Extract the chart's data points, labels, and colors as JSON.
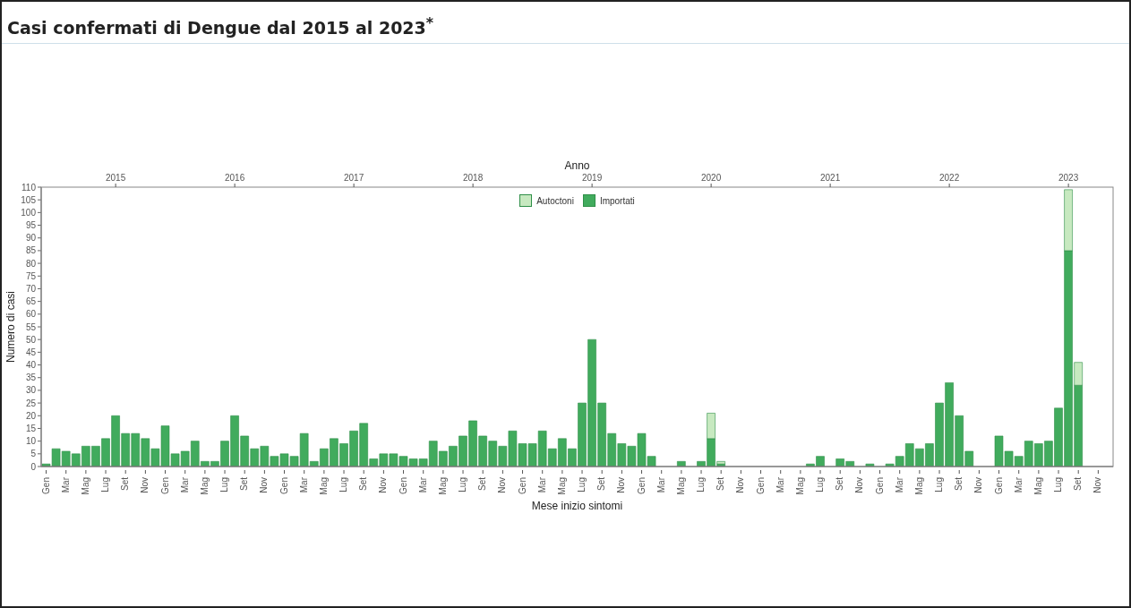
{
  "chart_data": {
    "type": "bar",
    "title": "Casi confermati di Dengue dal 2015 al 2023$^{*}$",
    "xlabel": "Mese inizio sintomi",
    "ylabel": "Numero di casi",
    "x2label": "Anno",
    "categories": [
      "Gen",
      null,
      "Mar",
      null,
      "Mag",
      null,
      "Lug",
      null,
      "Set",
      null,
      "Nov",
      null,
      "Gen",
      null,
      "Mar",
      null,
      "Mag",
      null,
      "Lug",
      null,
      "Set",
      null,
      "Nov",
      null,
      "Gen",
      null,
      "Mar",
      null,
      "Mag",
      null,
      "Lug",
      null,
      "Set",
      null,
      "Nov",
      null,
      "Gen",
      null,
      "Mar",
      null,
      "Mag",
      null,
      "Lug",
      null,
      "Set",
      null,
      "Nov",
      null,
      "Gen",
      null,
      "Mar",
      null,
      "Mag",
      null,
      "Lug",
      null,
      "Set",
      null,
      "Nov",
      null,
      "Gen",
      null,
      "Mar",
      null,
      "Mag",
      null,
      "Lug",
      null,
      "Set",
      null,
      "Nov",
      null,
      "Gen",
      null,
      "Mar",
      null,
      "Mag",
      null,
      "Lug",
      null,
      "Set",
      null,
      "Nov",
      null,
      "Gen",
      null,
      "Mar",
      null,
      "Mag",
      null,
      "Lug",
      null,
      "Set",
      null,
      "Nov",
      null,
      "Gen",
      null,
      "Mar",
      null,
      "Mag",
      null,
      "Lug",
      null,
      "Set",
      null,
      "Nov",
      null
    ],
    "stacked": true,
    "series": [
      {
        "name": "Importati",
        "color": "#41ab5d",
        "values": [
          1,
          7,
          6,
          5,
          8,
          8,
          11,
          20,
          13,
          13,
          11,
          7,
          16,
          5,
          6,
          10,
          2,
          2,
          10,
          20,
          12,
          7,
          8,
          4,
          5,
          4,
          13,
          2,
          7,
          11,
          9,
          14,
          17,
          3,
          5,
          5,
          4,
          3,
          3,
          10,
          6,
          8,
          12,
          18,
          12,
          10,
          8,
          14,
          9,
          9,
          14,
          7,
          11,
          7,
          25,
          50,
          25,
          13,
          9,
          8,
          13,
          4,
          0,
          0,
          2,
          0,
          2,
          11,
          1,
          0,
          0,
          0,
          0,
          0,
          0,
          0,
          0,
          1,
          4,
          0,
          3,
          2,
          0,
          1,
          0,
          1,
          4,
          9,
          7,
          9,
          25,
          33,
          20,
          6,
          0,
          0,
          12,
          6,
          4,
          10,
          9,
          10,
          23,
          85,
          32,
          0,
          0,
          0
        ]
      },
      {
        "name": "Autoctoni",
        "color": "#c7e9c0",
        "values": [
          0,
          0,
          0,
          0,
          0,
          0,
          0,
          0,
          0,
          0,
          0,
          0,
          0,
          0,
          0,
          0,
          0,
          0,
          0,
          0,
          0,
          0,
          0,
          0,
          0,
          0,
          0,
          0,
          0,
          0,
          0,
          0,
          0,
          0,
          0,
          0,
          0,
          0,
          0,
          0,
          0,
          0,
          0,
          0,
          0,
          0,
          0,
          0,
          0,
          0,
          0,
          0,
          0,
          0,
          0,
          0,
          0,
          0,
          0,
          0,
          0,
          0,
          0,
          0,
          0,
          0,
          0,
          10,
          1,
          0,
          0,
          0,
          0,
          0,
          0,
          0,
          0,
          0,
          0,
          0,
          0,
          0,
          0,
          0,
          0,
          0,
          0,
          0,
          0,
          0,
          0,
          0,
          0,
          0,
          0,
          0,
          0,
          0,
          0,
          0,
          0,
          0,
          0,
          24,
          9,
          0,
          0,
          0
        ]
      }
    ],
    "ylim": [
      0,
      110
    ],
    "yticks": [
      0,
      5,
      10,
      15,
      20,
      25,
      30,
      35,
      40,
      45,
      50,
      55,
      60,
      65,
      70,
      75,
      80,
      85,
      90,
      95,
      100,
      105,
      110
    ],
    "x2lim": [
      2014.375,
      2023.375
    ],
    "x2ticks": [
      2015,
      2016,
      2017,
      2018,
      2019,
      2020,
      2021,
      2022,
      2023
    ],
    "legend": "top",
    "grid": false
  }
}
